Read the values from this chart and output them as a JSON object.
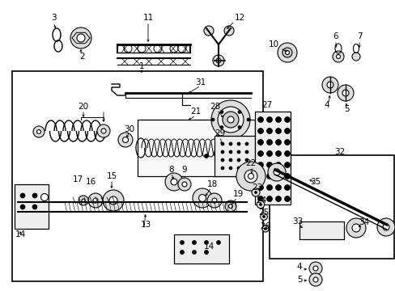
{
  "bg": "#ffffff",
  "lc": "#000000",
  "fig_w": 4.89,
  "fig_h": 3.6,
  "dpi": 100
}
